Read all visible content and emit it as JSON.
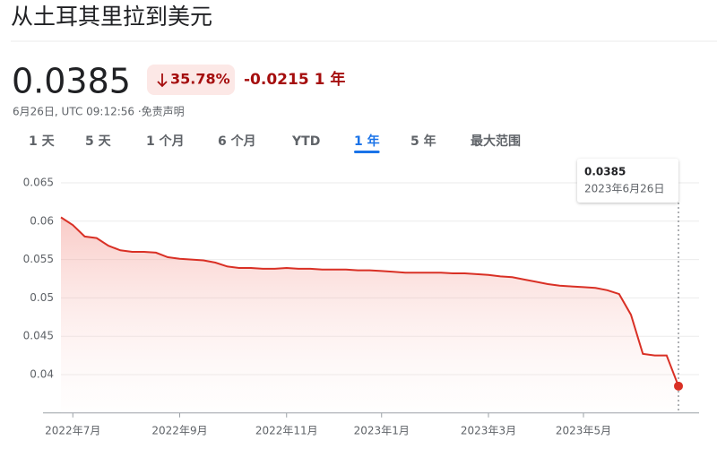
{
  "header": {
    "title": "从土耳其里拉到美元"
  },
  "quote": {
    "price": "0.0385",
    "change_percent": "35.78%",
    "change": "-0.0215",
    "change_period": "1 年",
    "timestamp": "6月26日, UTC 09:12:56 · ",
    "disclaimer": "免责声明"
  },
  "ranges": [
    "1 天",
    "5 天",
    "1 个月",
    "6 个月",
    "YTD",
    "1 年",
    "5 年",
    "最大范围"
  ],
  "selected_range": 5,
  "chart_data": {
    "type": "line",
    "categories": [
      null,
      "2022年7月",
      null,
      null,
      null,
      null,
      null,
      null,
      null,
      null,
      "2022年9月",
      null,
      null,
      null,
      null,
      null,
      null,
      null,
      null,
      "2022年11月",
      null,
      null,
      null,
      null,
      null,
      null,
      null,
      "2023年1月",
      null,
      null,
      null,
      null,
      null,
      null,
      null,
      null,
      "2023年3月",
      null,
      null,
      null,
      null,
      null,
      null,
      null,
      "2023年5月",
      null,
      null,
      null,
      null,
      null,
      null,
      null,
      null
    ],
    "values": [
      0.0605,
      0.0595,
      0.058,
      0.0578,
      0.0568,
      0.0562,
      0.056,
      0.056,
      0.0559,
      0.0553,
      0.0551,
      0.055,
      0.0549,
      0.0546,
      0.0541,
      0.0539,
      0.0539,
      0.0538,
      0.0538,
      0.0539,
      0.0538,
      0.0538,
      0.0537,
      0.0537,
      0.0537,
      0.0536,
      0.0536,
      0.0535,
      0.0534,
      0.0533,
      0.0533,
      0.0533,
      0.0533,
      0.0532,
      0.0532,
      0.0531,
      0.053,
      0.0528,
      0.0527,
      0.0524,
      0.0521,
      0.0518,
      0.0516,
      0.0515,
      0.0514,
      0.0513,
      0.051,
      0.0505,
      0.0478,
      0.0427,
      0.0425,
      0.0425,
      0.0385
    ],
    "color": "#d93025",
    "ylim": [
      0.035,
      0.0675
    ],
    "yticks": [
      0.04,
      0.045,
      0.05,
      0.055,
      0.06,
      0.065
    ],
    "grid": true,
    "tooltip_date": "2023年6月26日"
  }
}
